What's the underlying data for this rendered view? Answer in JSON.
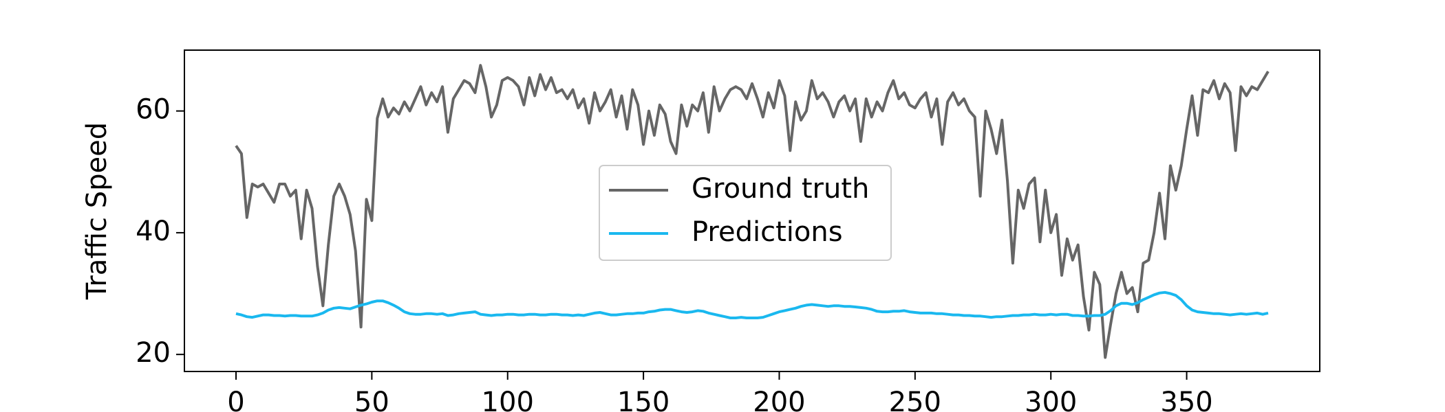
{
  "chart_data": {
    "type": "line",
    "y_label": "Traffic Speed",
    "x": [
      0,
      2,
      4,
      6,
      8,
      10,
      12,
      14,
      16,
      18,
      20,
      22,
      24,
      26,
      28,
      30,
      32,
      34,
      36,
      38,
      40,
      42,
      44,
      46,
      48,
      50,
      52,
      54,
      56,
      58,
      60,
      62,
      64,
      66,
      68,
      70,
      72,
      74,
      76,
      78,
      80,
      82,
      84,
      86,
      88,
      90,
      92,
      94,
      96,
      98,
      100,
      102,
      104,
      106,
      108,
      110,
      112,
      114,
      116,
      118,
      120,
      122,
      124,
      126,
      128,
      130,
      132,
      134,
      136,
      138,
      140,
      142,
      144,
      146,
      148,
      150,
      152,
      154,
      156,
      158,
      160,
      162,
      164,
      166,
      168,
      170,
      172,
      174,
      176,
      178,
      180,
      182,
      184,
      186,
      188,
      190,
      192,
      194,
      196,
      198,
      200,
      202,
      204,
      206,
      208,
      210,
      212,
      214,
      216,
      218,
      220,
      222,
      224,
      226,
      228,
      230,
      232,
      234,
      236,
      238,
      240,
      242,
      244,
      246,
      248,
      250,
      252,
      254,
      256,
      258,
      260,
      262,
      264,
      266,
      268,
      270,
      272,
      274,
      276,
      278,
      280,
      282,
      284,
      286,
      288,
      290,
      292,
      294,
      296,
      298,
      300,
      302,
      304,
      306,
      308,
      310,
      312,
      314,
      316,
      318,
      320,
      322,
      324,
      326,
      328,
      330,
      332,
      334,
      336,
      338,
      340,
      342,
      344,
      346,
      348,
      350,
      352,
      354,
      356,
      358,
      360,
      362,
      364,
      366,
      368,
      370,
      372,
      374,
      376,
      378,
      380
    ],
    "series": [
      {
        "name": "Ground truth",
        "color": "#666666",
        "values": [
          54.3,
          53,
          42.5,
          48,
          47.5,
          48,
          46.5,
          45,
          48,
          48,
          46,
          47,
          39,
          47,
          44,
          34.5,
          28,
          38,
          46,
          48,
          46,
          43,
          37,
          24.5,
          45.5,
          42,
          58.8,
          62,
          59,
          60.5,
          59.5,
          61.5,
          60,
          62,
          64,
          61,
          63,
          61.5,
          64,
          56.5,
          62,
          63.5,
          65,
          64.5,
          63,
          67.5,
          64,
          59,
          61,
          65,
          65.5,
          65,
          64,
          61,
          65.5,
          62.5,
          66,
          63.5,
          65.5,
          63,
          63.5,
          62,
          63.5,
          60.5,
          62,
          58,
          63,
          60,
          61.5,
          63.5,
          59,
          62.5,
          57,
          63.5,
          61,
          54.5,
          60,
          56,
          61,
          59.5,
          55,
          53,
          61,
          57.5,
          61,
          60,
          63,
          56.5,
          64,
          60,
          62,
          63.5,
          64,
          63.5,
          62,
          64.5,
          62,
          59,
          63,
          60.5,
          65,
          62.5,
          53.5,
          61.5,
          58.5,
          60,
          65,
          62,
          63,
          61.5,
          59,
          61.5,
          62.5,
          60,
          62,
          55,
          62,
          59,
          61.5,
          60,
          63,
          65,
          62,
          63,
          61,
          60.5,
          62,
          63,
          59,
          62,
          54.5,
          61.5,
          63,
          61,
          62,
          60,
          59,
          46,
          60,
          57,
          53,
          58.5,
          48.5,
          35,
          47,
          44,
          48,
          49,
          38.5,
          47,
          40,
          43,
          33,
          39,
          35.5,
          38,
          29.5,
          24,
          33.5,
          31.5,
          19.5,
          25,
          30,
          33.5,
          30,
          31,
          27,
          35,
          35.5,
          40,
          46.5,
          39,
          51,
          47,
          51,
          57,
          62.5,
          56,
          63.5,
          63,
          65,
          62,
          64.5,
          63,
          53.5,
          64,
          62.5,
          64,
          63.5,
          65,
          66.5
        ]
      },
      {
        "name": "Predictions",
        "color": "#1ab8ef",
        "values": [
          26.7,
          26.5,
          26.2,
          26.1,
          26.3,
          26.5,
          26.5,
          26.4,
          26.4,
          26.3,
          26.4,
          26.4,
          26.3,
          26.3,
          26.3,
          26.5,
          26.8,
          27.3,
          27.6,
          27.7,
          27.6,
          27.5,
          27.8,
          28.1,
          28.3,
          28.6,
          28.8,
          28.8,
          28.5,
          28.1,
          27.6,
          27.0,
          26.7,
          26.6,
          26.6,
          26.7,
          26.7,
          26.6,
          26.7,
          26.4,
          26.5,
          26.7,
          26.8,
          26.9,
          27.0,
          26.6,
          26.5,
          26.4,
          26.5,
          26.5,
          26.6,
          26.6,
          26.5,
          26.5,
          26.6,
          26.6,
          26.5,
          26.5,
          26.6,
          26.6,
          26.5,
          26.5,
          26.4,
          26.5,
          26.4,
          26.6,
          26.8,
          26.9,
          26.7,
          26.5,
          26.5,
          26.6,
          26.7,
          26.7,
          26.8,
          26.8,
          27.0,
          27.1,
          27.3,
          27.4,
          27.4,
          27.2,
          27.0,
          26.9,
          27.0,
          27.2,
          27.1,
          26.8,
          26.6,
          26.4,
          26.2,
          26.0,
          26.0,
          26.1,
          26.0,
          26.0,
          26.0,
          26.1,
          26.4,
          26.7,
          27.0,
          27.2,
          27.4,
          27.6,
          27.9,
          28.1,
          28.2,
          28.1,
          28.0,
          27.9,
          28.0,
          28.0,
          27.9,
          27.9,
          27.8,
          27.7,
          27.6,
          27.4,
          27.1,
          27.0,
          27.0,
          27.1,
          27.1,
          27.2,
          27.0,
          26.9,
          26.8,
          26.8,
          26.8,
          26.7,
          26.7,
          26.6,
          26.5,
          26.5,
          26.4,
          26.4,
          26.3,
          26.3,
          26.2,
          26.1,
          26.2,
          26.2,
          26.3,
          26.4,
          26.4,
          26.5,
          26.5,
          26.6,
          26.5,
          26.5,
          26.6,
          26.5,
          26.6,
          26.6,
          26.4,
          26.4,
          26.3,
          26.3,
          26.4,
          26.4,
          26.6,
          27.2,
          28.0,
          28.4,
          28.4,
          28.2,
          28.5,
          29.0,
          29.4,
          29.8,
          30.1,
          30.2,
          30.0,
          29.7,
          29.0,
          28.0,
          27.3,
          27.0,
          26.9,
          26.8,
          26.7,
          26.7,
          26.6,
          26.5,
          26.6,
          26.7,
          26.6,
          26.7,
          26.8,
          26.6,
          26.8
        ]
      }
    ],
    "xlim": [
      -19,
      399
    ],
    "ylim": [
      17.2,
      70.0
    ],
    "xticks": [
      0,
      50,
      100,
      150,
      200,
      250,
      300,
      350
    ],
    "yticks": [
      20,
      40,
      60
    ],
    "legend": "center"
  }
}
